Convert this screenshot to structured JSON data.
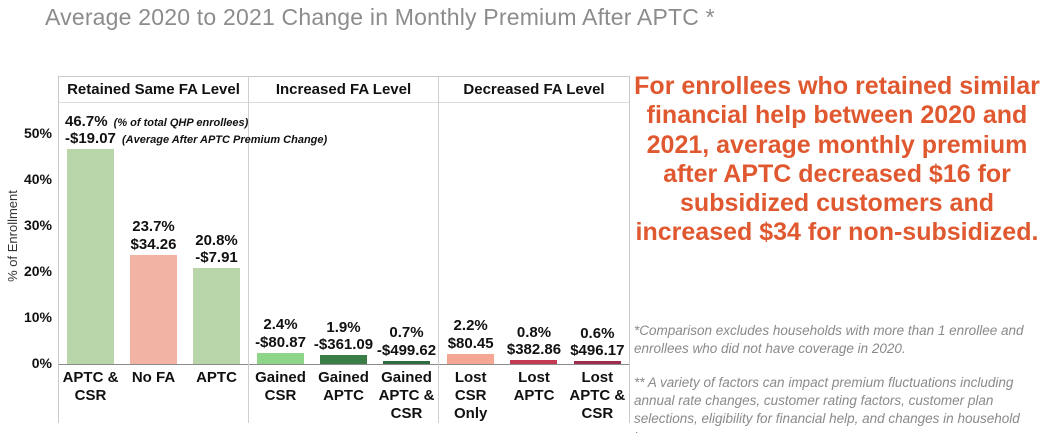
{
  "title": "Average 2020 to 2021 Change in Monthly Premium After APTC *",
  "callout": "For enrollees who retained similar financial help between 2020 and 2021, average monthly premium after APTC decreased $16 for subsidized customers and increased $34 for non-subsidized.",
  "footnote1": "*Comparison excludes households with more than 1 enrollee and enrollees who did not have coverage in 2020.",
  "footnote2": "** A variety of factors can impact premium fluctuations including annual rate changes, customer rating factors, customer plan selections, eligibility for financial help, and changes in household income.",
  "colors": {
    "title_gray": "#8c8c8c",
    "callout_orange": "#e0582f",
    "footnote_gray": "#8a8a8a",
    "light_green": "#b9d6ab",
    "bright_green": "#8ed489",
    "dark_green": "#3a7d46",
    "darker_green": "#2e6b3e",
    "salmon": "#f2b2a4",
    "salmon2": "#f5a793",
    "crimson": "#c43a52",
    "dark_red": "#a02c4d"
  },
  "chart_data": {
    "type": "bar",
    "title": "Average 2020 to 2021 Change in Monthly Premium After APTC *",
    "xlabel": "",
    "ylabel": "% of Enrollment",
    "ylim": [
      0,
      50
    ],
    "yticks": [
      "0%",
      "10%",
      "20%",
      "30%",
      "40%",
      "50%"
    ],
    "grid": false,
    "legend_position": "none",
    "value_note_pct": "(% of total QHP enrollees)",
    "value_note_amount": "(Average After APTC Premium Change)",
    "groups": [
      {
        "header": "Retained Same FA Level",
        "bars": [
          {
            "label": "APTC & CSR",
            "pct": 46.7,
            "pct_label": "46.7%",
            "amount_label": "-$19.07",
            "pct_note": "(% of total QHP enrollees)",
            "amount_note": "(Average After APTC Premium Change)",
            "color": "#b9d6ab",
            "label_align": "left"
          },
          {
            "label": "No FA",
            "pct": 23.7,
            "pct_label": "23.7%",
            "amount_label": "$34.26",
            "color": "#f2b2a4"
          },
          {
            "label": "APTC",
            "pct": 20.8,
            "pct_label": "20.8%",
            "amount_label": "-$7.91",
            "color": "#b9d6ab"
          }
        ]
      },
      {
        "header": "Increased FA Level",
        "bars": [
          {
            "label": "Gained CSR",
            "pct": 2.4,
            "pct_label": "2.4%",
            "amount_label": "-$80.87",
            "color": "#8ed489"
          },
          {
            "label": "Gained APTC",
            "pct": 1.9,
            "pct_label": "1.9%",
            "amount_label": "-$361.09",
            "color": "#3a7d46"
          },
          {
            "label": "Gained APTC & CSR",
            "pct": 0.7,
            "pct_label": "0.7%",
            "amount_label": "-$499.62",
            "color": "#2e6b3e"
          }
        ]
      },
      {
        "header": "Decreased FA Level",
        "bars": [
          {
            "label": "Lost CSR Only",
            "pct": 2.2,
            "pct_label": "2.2%",
            "amount_label": "$80.45",
            "color": "#f5a793"
          },
          {
            "label": "Lost APTC",
            "pct": 0.8,
            "pct_label": "0.8%",
            "amount_label": "$382.86",
            "color": "#c43a52"
          },
          {
            "label": "Lost APTC & CSR",
            "pct": 0.6,
            "pct_label": "0.6%",
            "amount_label": "$496.17",
            "color": "#a02c4d"
          }
        ]
      }
    ]
  }
}
